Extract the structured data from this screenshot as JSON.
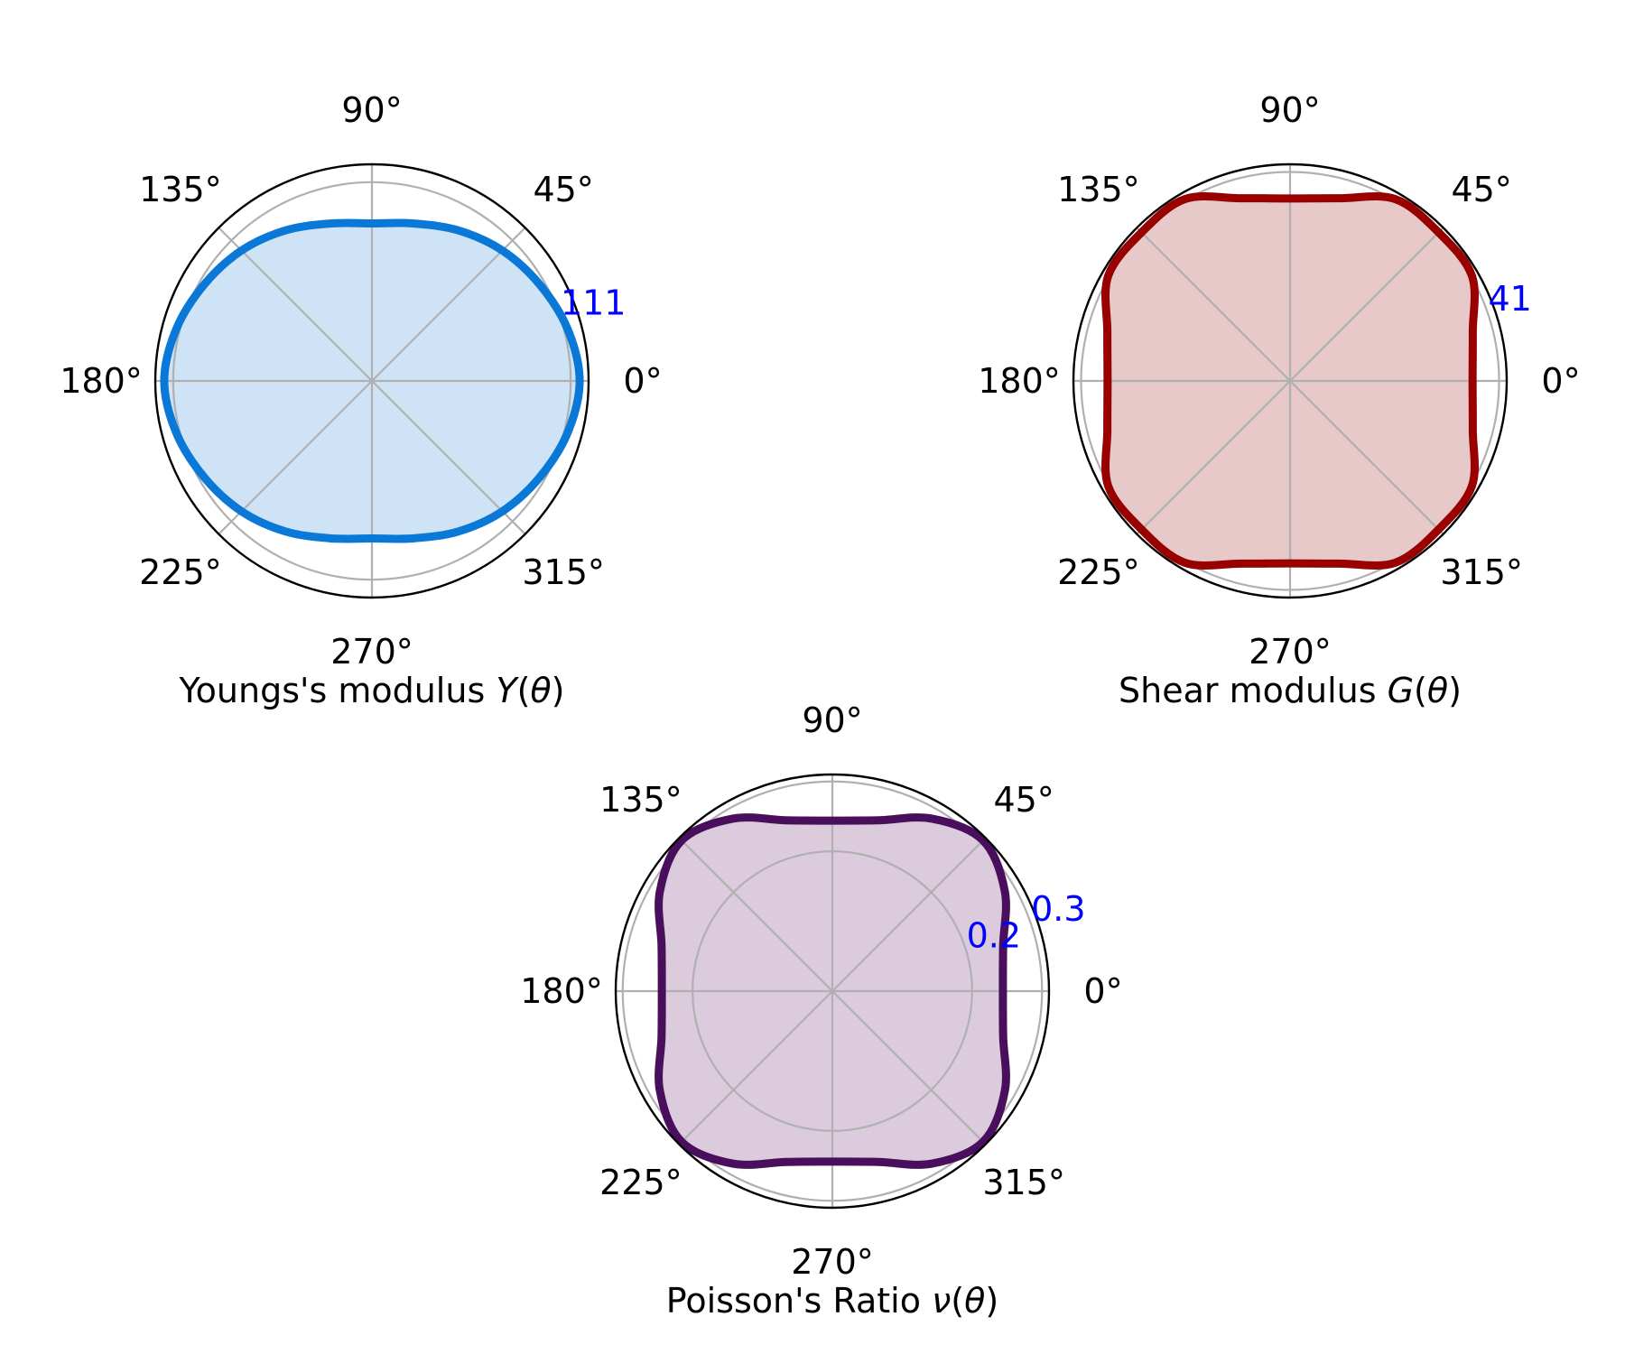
{
  "chart_data": [
    {
      "type": "line",
      "projection": "polar",
      "xlabel": {
        "prefix": "Youngs's modulus ",
        "symbol": "Y",
        "open": "(",
        "arg": "θ",
        "close": ")"
      },
      "theta_ticks": [
        "0°",
        "45°",
        "90°",
        "135°",
        "180°",
        "225°",
        "270°",
        "315°"
      ],
      "r_ticks": [
        111
      ],
      "r_tick_labels": [
        "111"
      ],
      "rlim": [
        0,
        121
      ],
      "grid": true,
      "fill": true,
      "line_color": "#0a78d7",
      "fill_color": "#cfe3f6",
      "tick_label_color": "#0000ff",
      "series": [
        {
          "theta_deg": [
            0,
            15,
            30,
            45,
            60,
            75,
            90,
            105,
            120,
            135,
            150,
            165,
            180,
            195,
            210,
            225,
            240,
            255,
            270,
            285,
            300,
            315,
            330,
            345
          ],
          "r": [
            116,
            113,
            108,
            103,
            97,
            91,
            88,
            91,
            97,
            103,
            108,
            113,
            116,
            113,
            108,
            103,
            97,
            91,
            88,
            91,
            97,
            103,
            108,
            113
          ]
        }
      ]
    },
    {
      "type": "line",
      "projection": "polar",
      "xlabel": {
        "prefix": "Shear modulus ",
        "symbol": "G",
        "open": "(",
        "arg": "θ",
        "close": ")"
      },
      "theta_ticks": [
        "0°",
        "45°",
        "90°",
        "135°",
        "180°",
        "225°",
        "270°",
        "315°"
      ],
      "r_ticks": [
        41
      ],
      "r_tick_labels": [
        "41"
      ],
      "rlim": [
        0,
        42.5
      ],
      "grid": true,
      "fill": true,
      "line_color": "#990000",
      "fill_color": "#e8c9ca",
      "tick_label_color": "#0000ff",
      "series": [
        {
          "theta_deg": [
            0,
            15,
            30,
            45,
            60,
            75,
            90,
            105,
            120,
            135,
            150,
            165,
            180,
            195,
            210,
            225,
            240,
            255,
            270,
            285,
            300,
            315,
            330,
            345
          ],
          "r": [
            35.8,
            37.1,
            41.2,
            41.2,
            41.2,
            37.1,
            35.8,
            37.1,
            41.2,
            41.2,
            41.2,
            37.1,
            35.8,
            37.1,
            41.2,
            41.2,
            41.2,
            37.1,
            35.8,
            37.1,
            41.2,
            41.2,
            41.2,
            37.1
          ]
        }
      ]
    },
    {
      "type": "line",
      "projection": "polar",
      "xlabel": {
        "prefix": "Poisson's Ratio ",
        "symbol": "ν",
        "open": "(",
        "arg": "θ",
        "close": ")"
      },
      "theta_ticks": [
        "0°",
        "45°",
        "90°",
        "135°",
        "180°",
        "225°",
        "270°",
        "315°"
      ],
      "r_ticks": [
        0.2,
        0.3
      ],
      "r_tick_labels": [
        "0.2",
        "0.3"
      ],
      "rlim": [
        0,
        0.31
      ],
      "grid": true,
      "fill": true,
      "line_color": "#4a0f5c",
      "fill_color": "#dccbdd",
      "tick_label_color": "#0000ff",
      "series": [
        {
          "theta_deg": [
            0,
            15,
            30,
            45,
            60,
            75,
            90,
            105,
            120,
            135,
            150,
            165,
            180,
            195,
            210,
            225,
            240,
            255,
            270,
            285,
            300,
            315,
            330,
            345
          ],
          "r": [
            0.244,
            0.253,
            0.285,
            0.305,
            0.285,
            0.253,
            0.244,
            0.253,
            0.285,
            0.305,
            0.285,
            0.253,
            0.244,
            0.253,
            0.285,
            0.305,
            0.285,
            0.253,
            0.244,
            0.253,
            0.285,
            0.305,
            0.285,
            0.253
          ]
        }
      ]
    }
  ]
}
